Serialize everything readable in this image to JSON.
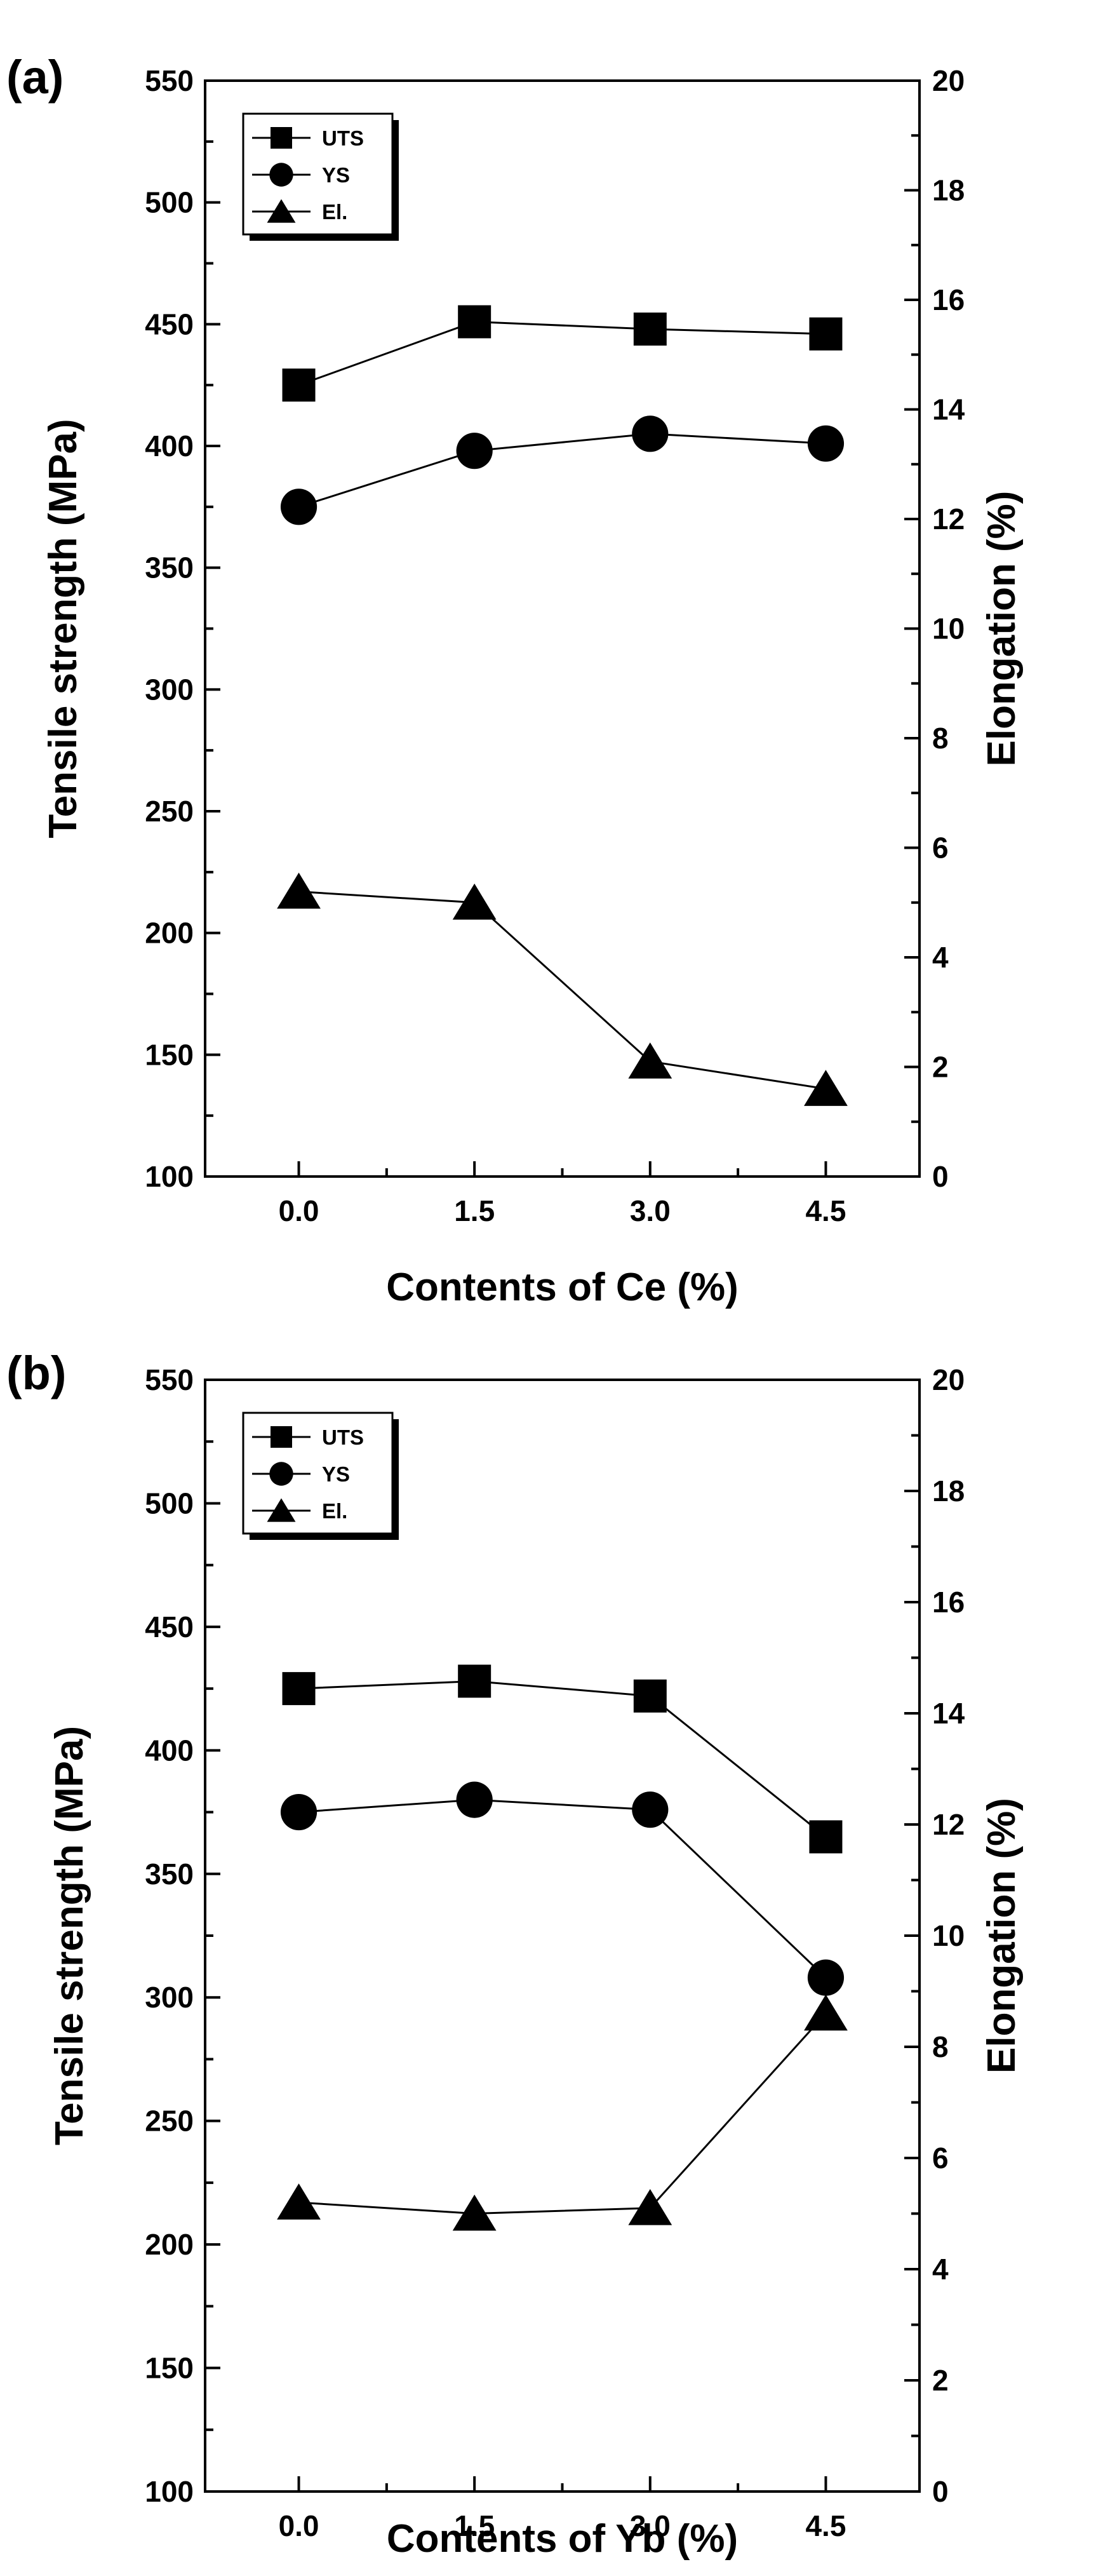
{
  "chart_data": [
    {
      "type": "line",
      "panel_label": "(a)",
      "xlabel": "Contents of Ce (%)",
      "ylabel": "Tensile strength (MPa)",
      "y2label": "Elongation (%)",
      "xlim": [
        -0.8,
        5.3
      ],
      "ylim": [
        100,
        550
      ],
      "y2lim": [
        0,
        20
      ],
      "xticks": [
        0.0,
        1.5,
        3.0,
        4.5
      ],
      "xtick_labels": [
        "0.0",
        "1.5",
        "3.0",
        "4.5"
      ],
      "yticks": [
        100,
        150,
        200,
        250,
        300,
        350,
        400,
        450,
        500,
        550
      ],
      "ytick_labels": [
        "100",
        "150",
        "200",
        "250",
        "300",
        "350",
        "400",
        "450",
        "500",
        "550"
      ],
      "y2ticks": [
        0,
        2,
        4,
        6,
        8,
        10,
        12,
        14,
        16,
        18,
        20
      ],
      "y2tick_labels": [
        "0",
        "2",
        "4",
        "6",
        "8",
        "10",
        "12",
        "14",
        "16",
        "18",
        "20"
      ],
      "legend_position": "top-left",
      "x": [
        0.0,
        1.5,
        3.0,
        4.5
      ],
      "series": [
        {
          "name": "UTS",
          "marker": "square",
          "axis": "left",
          "values": [
            425,
            451,
            448,
            446
          ]
        },
        {
          "name": "YS",
          "marker": "circle",
          "axis": "left",
          "values": [
            375,
            398,
            405,
            401
          ]
        },
        {
          "name": "El.",
          "marker": "triangle",
          "axis": "right",
          "values": [
            5.2,
            5.0,
            2.1,
            1.6
          ]
        }
      ]
    },
    {
      "type": "line",
      "panel_label": "(b)",
      "xlabel": "Contents of Yb (%)",
      "ylabel": "Tensile strength (MPa)",
      "y2label": "Elongation (%)",
      "xlim": [
        -0.8,
        5.3
      ],
      "ylim": [
        100,
        550
      ],
      "y2lim": [
        0,
        20
      ],
      "xticks": [
        0.0,
        1.5,
        3.0,
        4.5
      ],
      "xtick_labels": [
        "0.0",
        "1.5",
        "3.0",
        "4.5"
      ],
      "yticks": [
        100,
        150,
        200,
        250,
        300,
        350,
        400,
        450,
        500,
        550
      ],
      "ytick_labels": [
        "100",
        "150",
        "200",
        "250",
        "300",
        "350",
        "400",
        "450",
        "500",
        "550"
      ],
      "y2ticks": [
        0,
        2,
        4,
        6,
        8,
        10,
        12,
        14,
        16,
        18,
        20
      ],
      "y2tick_labels": [
        "0",
        "2",
        "4",
        "6",
        "8",
        "10",
        "12",
        "14",
        "16",
        "18",
        "20"
      ],
      "legend_position": "top-left",
      "x": [
        0.0,
        1.5,
        3.0,
        4.5
      ],
      "series": [
        {
          "name": "UTS",
          "marker": "square",
          "axis": "left",
          "values": [
            425,
            428,
            422,
            365
          ]
        },
        {
          "name": "YS",
          "marker": "circle",
          "axis": "left",
          "values": [
            375,
            380,
            376,
            308
          ]
        },
        {
          "name": "El.",
          "marker": "triangle",
          "axis": "right",
          "values": [
            5.2,
            5.0,
            5.1,
            8.6
          ]
        }
      ]
    }
  ]
}
